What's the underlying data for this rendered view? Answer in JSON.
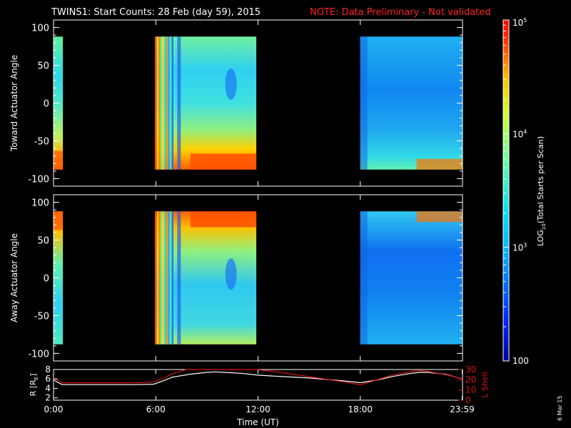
{
  "header": {
    "title": "TWINS1: Start Counts: 28 Feb (day  59), 2015",
    "note": "NOTE: Data Preliminary - Not validated",
    "note_color": "#ff2020"
  },
  "side_stamp": "6 Mar 15",
  "colorbar": {
    "label": "LOG10(Total Starts per Scan)",
    "label_main": "LOG",
    "label_sub": "10",
    "label_rest": "(Total Starts per Scan)",
    "scale": "log",
    "range": [
      100,
      100000
    ],
    "ticks": [
      {
        "value": 100,
        "base": "100",
        "exp": ""
      },
      {
        "value": 1000,
        "base": "10",
        "exp": "3"
      },
      {
        "value": 10000,
        "base": "10",
        "exp": "4"
      },
      {
        "value": 100000,
        "base": "10",
        "exp": "5"
      }
    ]
  },
  "chart_data": [
    {
      "type": "heatmap",
      "ylabel": "Toward Actuator Angle",
      "ylim": [
        -110,
        110
      ],
      "yticks": [
        "100",
        "50",
        "0",
        "-50",
        "-100"
      ],
      "ytick_values": [
        100,
        50,
        0,
        -50,
        -100
      ],
      "data_extent_angle": [
        -88,
        88
      ],
      "data_blocks_hours": [
        [
          0.0,
          0.55
        ],
        [
          5.95,
          11.9
        ],
        [
          18.0,
          24.0
        ]
      ]
    },
    {
      "type": "heatmap",
      "ylabel": "Away Actuator Angle",
      "ylim": [
        -110,
        110
      ],
      "yticks": [
        "100",
        "50",
        "0",
        "-50",
        "-100"
      ],
      "ytick_values": [
        100,
        50,
        0,
        -50,
        -100
      ],
      "data_extent_angle": [
        -88,
        88
      ],
      "data_blocks_hours": [
        [
          0.0,
          0.55
        ],
        [
          5.95,
          11.9
        ],
        [
          18.0,
          24.0
        ]
      ]
    },
    {
      "type": "line",
      "ylabel_left": "R [RE]",
      "ylabel_left_main": "R [R",
      "ylabel_left_sub": "E",
      "ylabel_left_end": "]",
      "ylabel_right": "L Shell",
      "ylim_left": [
        1.5,
        8
      ],
      "yticks_left": [
        "8",
        "6",
        "4",
        "2"
      ],
      "ytick_values_left": [
        8,
        6,
        4,
        2
      ],
      "ylim_right": [
        0,
        30
      ],
      "yticks_right": [
        "30",
        "20",
        "10",
        "0"
      ],
      "ytick_values_right": [
        30,
        20,
        10,
        0
      ],
      "xlabel": "Time (UT)",
      "xlim": [
        0,
        24
      ],
      "xticks": [
        "0:00",
        "6:00",
        "12:00",
        "18:00",
        "23:59"
      ],
      "xtick_values": [
        0,
        6,
        12,
        18,
        23.98
      ],
      "series": [
        {
          "axis": "left",
          "color": "#ffffff",
          "x": [
            0,
            0.5,
            1,
            2,
            3,
            4,
            5,
            5.9,
            6.5,
            7,
            8,
            9,
            9.5,
            10,
            11,
            12,
            13,
            14,
            15,
            16,
            17,
            18,
            19,
            20,
            21,
            21.5,
            22,
            23,
            24
          ],
          "y": [
            5.8,
            4.8,
            4.8,
            4.8,
            4.8,
            4.8,
            4.8,
            4.9,
            5.7,
            6.4,
            7.0,
            7.4,
            7.5,
            7.4,
            7.2,
            6.8,
            6.6,
            6.4,
            6.2,
            5.9,
            5.6,
            5.2,
            5.8,
            6.6,
            7.2,
            7.4,
            7.4,
            7.0,
            6.0
          ]
        },
        {
          "axis": "right",
          "color": "#e01010",
          "x": [
            0,
            0.5,
            1,
            2,
            3,
            4,
            5,
            5.9,
            6.5,
            7,
            7.8,
            11.9,
            13,
            15,
            17,
            18,
            19,
            20,
            21,
            21.5,
            22,
            23,
            24
          ],
          "y": [
            22,
            17,
            17,
            17,
            17,
            17,
            17,
            18,
            22,
            26,
            30,
            30,
            28,
            23,
            18,
            15,
            20,
            25,
            28,
            29,
            28,
            25,
            21
          ]
        }
      ]
    }
  ]
}
